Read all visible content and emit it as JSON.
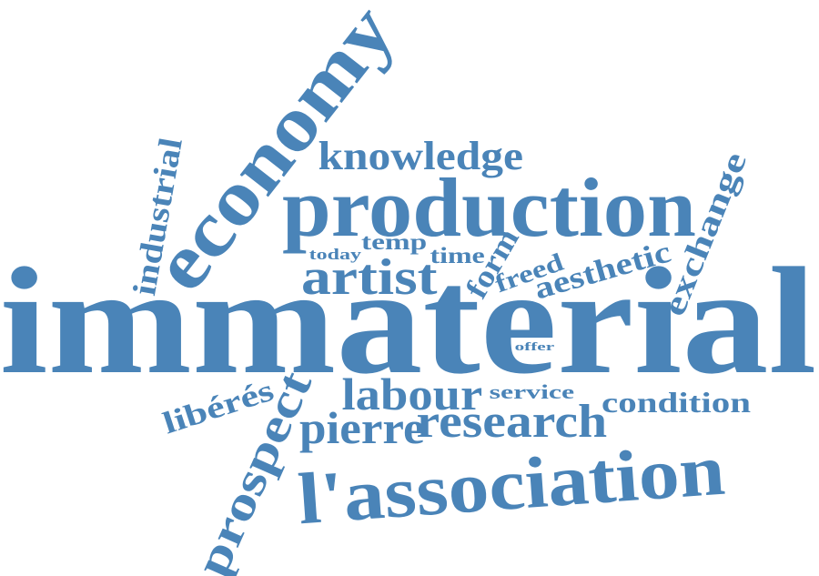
{
  "color": "#4a84b8",
  "background": "#ffffff",
  "words": [
    {
      "id": "immaterial",
      "text": "immaterial"
    },
    {
      "id": "production",
      "text": "production"
    },
    {
      "id": "economy",
      "text": "economy"
    },
    {
      "id": "association",
      "text": "l'association"
    },
    {
      "id": "research",
      "text": "research"
    },
    {
      "id": "pierre",
      "text": "pierre"
    },
    {
      "id": "labour",
      "text": "labour"
    },
    {
      "id": "artist",
      "text": "artist"
    },
    {
      "id": "knowledge",
      "text": "knowledge"
    },
    {
      "id": "industrial",
      "text": "industrial"
    },
    {
      "id": "prospect",
      "text": "prospect"
    },
    {
      "id": "exchange",
      "text": "exchange"
    },
    {
      "id": "aesthetic",
      "text": "aesthetic"
    },
    {
      "id": "condition",
      "text": "condition"
    },
    {
      "id": "liberes",
      "text": "libérés"
    },
    {
      "id": "form",
      "text": "form"
    },
    {
      "id": "freed",
      "text": "freed"
    },
    {
      "id": "service",
      "text": "service"
    },
    {
      "id": "temp",
      "text": "temp"
    },
    {
      "id": "time",
      "text": "time"
    },
    {
      "id": "today",
      "text": "today"
    },
    {
      "id": "offer",
      "text": "offer"
    }
  ]
}
